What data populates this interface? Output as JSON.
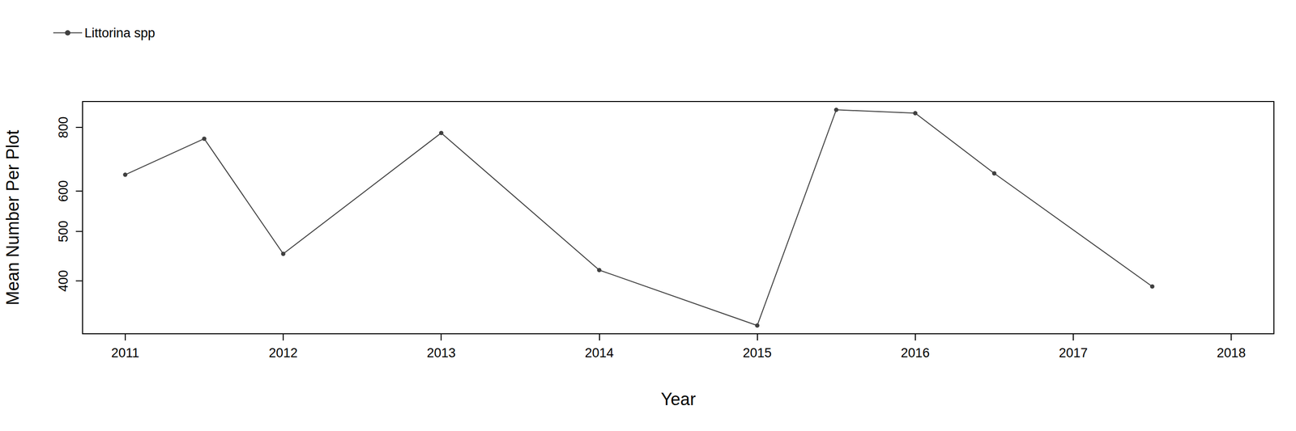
{
  "chart_data": {
    "type": "line",
    "x": [
      2011,
      2011.5,
      2012,
      2013,
      2014,
      2015,
      2015.5,
      2016,
      2016.5,
      2017.5
    ],
    "series": [
      {
        "name": "Littorina spp",
        "color": "#404040",
        "marker": "circle",
        "values": [
          646,
          760,
          452,
          780,
          420,
          327,
          866,
          853,
          650,
          390
        ]
      }
    ],
    "xlabel": "Year",
    "ylabel": "Mean Number Per Plot",
    "xlim": [
      2010.73,
      2018.27
    ],
    "ylim": [
      315,
      899
    ],
    "xticks": [
      2011,
      2012,
      2013,
      2014,
      2015,
      2016,
      2017,
      2018
    ],
    "yticks": [
      400,
      500,
      600,
      800
    ],
    "log": "y",
    "grid": false,
    "legend": "top-left"
  }
}
